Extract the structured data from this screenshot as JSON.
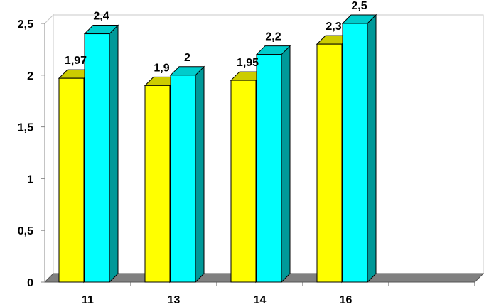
{
  "chart_data": {
    "type": "bar",
    "categories": [
      "11",
      "13",
      "14",
      "16",
      ""
    ],
    "series": [
      {
        "values": [
          1.97,
          1.9,
          1.95,
          2.3,
          null
        ],
        "labels": [
          "1,97",
          "1,9",
          "1,95",
          "2,3",
          ""
        ],
        "color": "#ffff00"
      },
      {
        "values": [
          2.4,
          2.0,
          2.2,
          2.5,
          null
        ],
        "labels": [
          "2,4",
          "2",
          "2,2",
          "2,5",
          ""
        ],
        "color": "#00ffff"
      }
    ],
    "y_ticks": [
      0,
      0.5,
      1,
      1.5,
      2,
      2.5
    ],
    "y_tick_labels": [
      "0",
      "0,5",
      "1",
      "1,5",
      "2",
      "2,5"
    ],
    "ylim": [
      0,
      2.5
    ],
    "grid": false,
    "legend": "none",
    "style": "3d-clustered-column",
    "floor_color": "#808080"
  }
}
